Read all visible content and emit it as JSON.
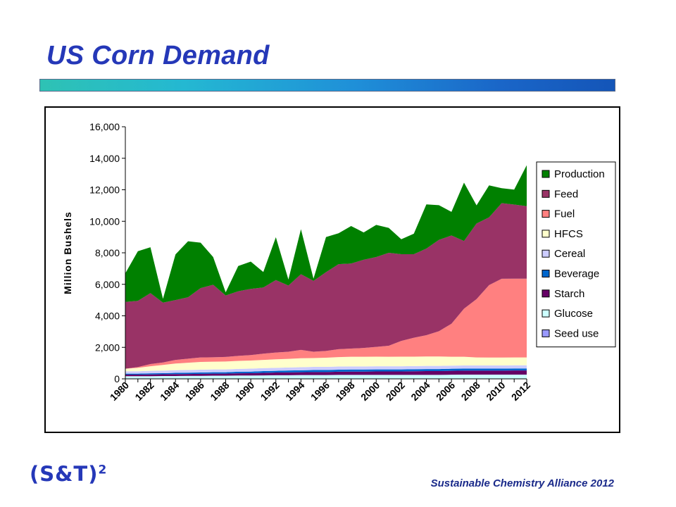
{
  "slide": {
    "title": "US Corn Demand",
    "logo_text": "(S&T)",
    "logo_sup": "2",
    "footer": "Sustainable Chemistry Alliance 2012"
  },
  "chart_data": {
    "type": "area",
    "stacked": true,
    "ylabel": "Million Bushels",
    "xlabel": "",
    "ylim": [
      0,
      16000
    ],
    "yticks": [
      0,
      2000,
      4000,
      6000,
      8000,
      10000,
      12000,
      14000,
      16000
    ],
    "ytick_labels": [
      "0",
      "2,000",
      "4,000",
      "6,000",
      "8,000",
      "10,000",
      "12,000",
      "14,000",
      "16,000"
    ],
    "x": [
      1980,
      1981,
      1982,
      1983,
      1984,
      1985,
      1986,
      1987,
      1988,
      1989,
      1990,
      1991,
      1992,
      1993,
      1994,
      1995,
      1996,
      1997,
      1998,
      1999,
      2000,
      2001,
      2002,
      2003,
      2004,
      2005,
      2006,
      2007,
      2008,
      2009,
      2010,
      2011,
      2012
    ],
    "xtick_labels": [
      "1980",
      "1982",
      "1984",
      "1986",
      "1988",
      "1990",
      "1992",
      "1994",
      "1996",
      "1998",
      "2000",
      "2002",
      "2004",
      "2006",
      "2008",
      "2010",
      "2012"
    ],
    "legend_position": "right",
    "grid": false,
    "series": [
      {
        "name": "Seed use",
        "color": "#9999ff",
        "values": [
          20,
          20,
          20,
          20,
          20,
          20,
          20,
          20,
          20,
          20,
          20,
          20,
          20,
          20,
          20,
          20,
          20,
          20,
          20,
          20,
          20,
          20,
          20,
          20,
          20,
          20,
          20,
          20,
          20,
          20,
          20,
          20,
          20
        ]
      },
      {
        "name": "Glucose",
        "color": "#ccffff",
        "values": [
          150,
          150,
          150,
          160,
          160,
          170,
          170,
          180,
          180,
          190,
          190,
          200,
          210,
          210,
          220,
          220,
          220,
          230,
          230,
          230,
          230,
          230,
          230,
          230,
          230,
          230,
          240,
          250,
          250,
          250,
          250,
          250,
          250
        ]
      },
      {
        "name": "Starch",
        "color": "#660066",
        "values": [
          100,
          100,
          110,
          110,
          120,
          120,
          130,
          130,
          130,
          140,
          150,
          160,
          170,
          180,
          180,
          190,
          190,
          200,
          210,
          210,
          220,
          220,
          220,
          230,
          240,
          240,
          250,
          250,
          250,
          250,
          250,
          260,
          260
        ]
      },
      {
        "name": "Beverage",
        "color": "#0066cc",
        "values": [
          60,
          60,
          70,
          70,
          80,
          80,
          80,
          90,
          90,
          100,
          100,
          110,
          110,
          120,
          120,
          130,
          130,
          130,
          130,
          130,
          130,
          130,
          130,
          130,
          130,
          130,
          130,
          130,
          130,
          130,
          130,
          130,
          130
        ]
      },
      {
        "name": "Cereal",
        "color": "#ccccff",
        "values": [
          150,
          150,
          160,
          160,
          170,
          170,
          180,
          180,
          180,
          180,
          190,
          190,
          190,
          190,
          200,
          200,
          200,
          200,
          200,
          200,
          200,
          200,
          200,
          200,
          200,
          200,
          200,
          200,
          200,
          200,
          200,
          200,
          200
        ]
      },
      {
        "name": "HFCS",
        "color": "#ffffcc",
        "values": [
          160,
          220,
          290,
          360,
          420,
          460,
          490,
          490,
          500,
          510,
          510,
          520,
          540,
          550,
          570,
          560,
          580,
          600,
          610,
          610,
          610,
          600,
          610,
          600,
          600,
          600,
          560,
          550,
          510,
          500,
          500,
          500,
          500
        ]
      },
      {
        "name": "Fuel",
        "color": "#ff8080",
        "values": [
          0,
          50,
          140,
          160,
          230,
          260,
          290,
          280,
          290,
          320,
          350,
          400,
          430,
          450,
          530,
          400,
          430,
          500,
          520,
          560,
          620,
          700,
          1000,
          1200,
          1350,
          1600,
          2100,
          3050,
          3700,
          4600,
          5000,
          5000,
          5000
        ]
      },
      {
        "name": "Feed",
        "color": "#993366",
        "values": [
          4240,
          4200,
          4500,
          3800,
          3800,
          3900,
          4400,
          4600,
          3900,
          4100,
          4200,
          4200,
          4600,
          4200,
          4800,
          4500,
          5000,
          5400,
          5400,
          5600,
          5700,
          5900,
          5500,
          5300,
          5500,
          5800,
          5600,
          4300,
          4800,
          4300,
          4800,
          4700,
          4600
        ]
      },
      {
        "name": "Production",
        "color": "#008000",
        "values": [
          1820,
          3150,
          2910,
          240,
          2900,
          3550,
          2880,
          1760,
          200,
          1600,
          1730,
          980,
          2720,
          380,
          2860,
          140,
          2230,
          1960,
          2380,
          1730,
          2040,
          1580,
          950,
          1300,
          2800,
          2200,
          1500,
          3700,
          1150,
          2030,
          950,
          950,
          2600
        ]
      }
    ]
  }
}
